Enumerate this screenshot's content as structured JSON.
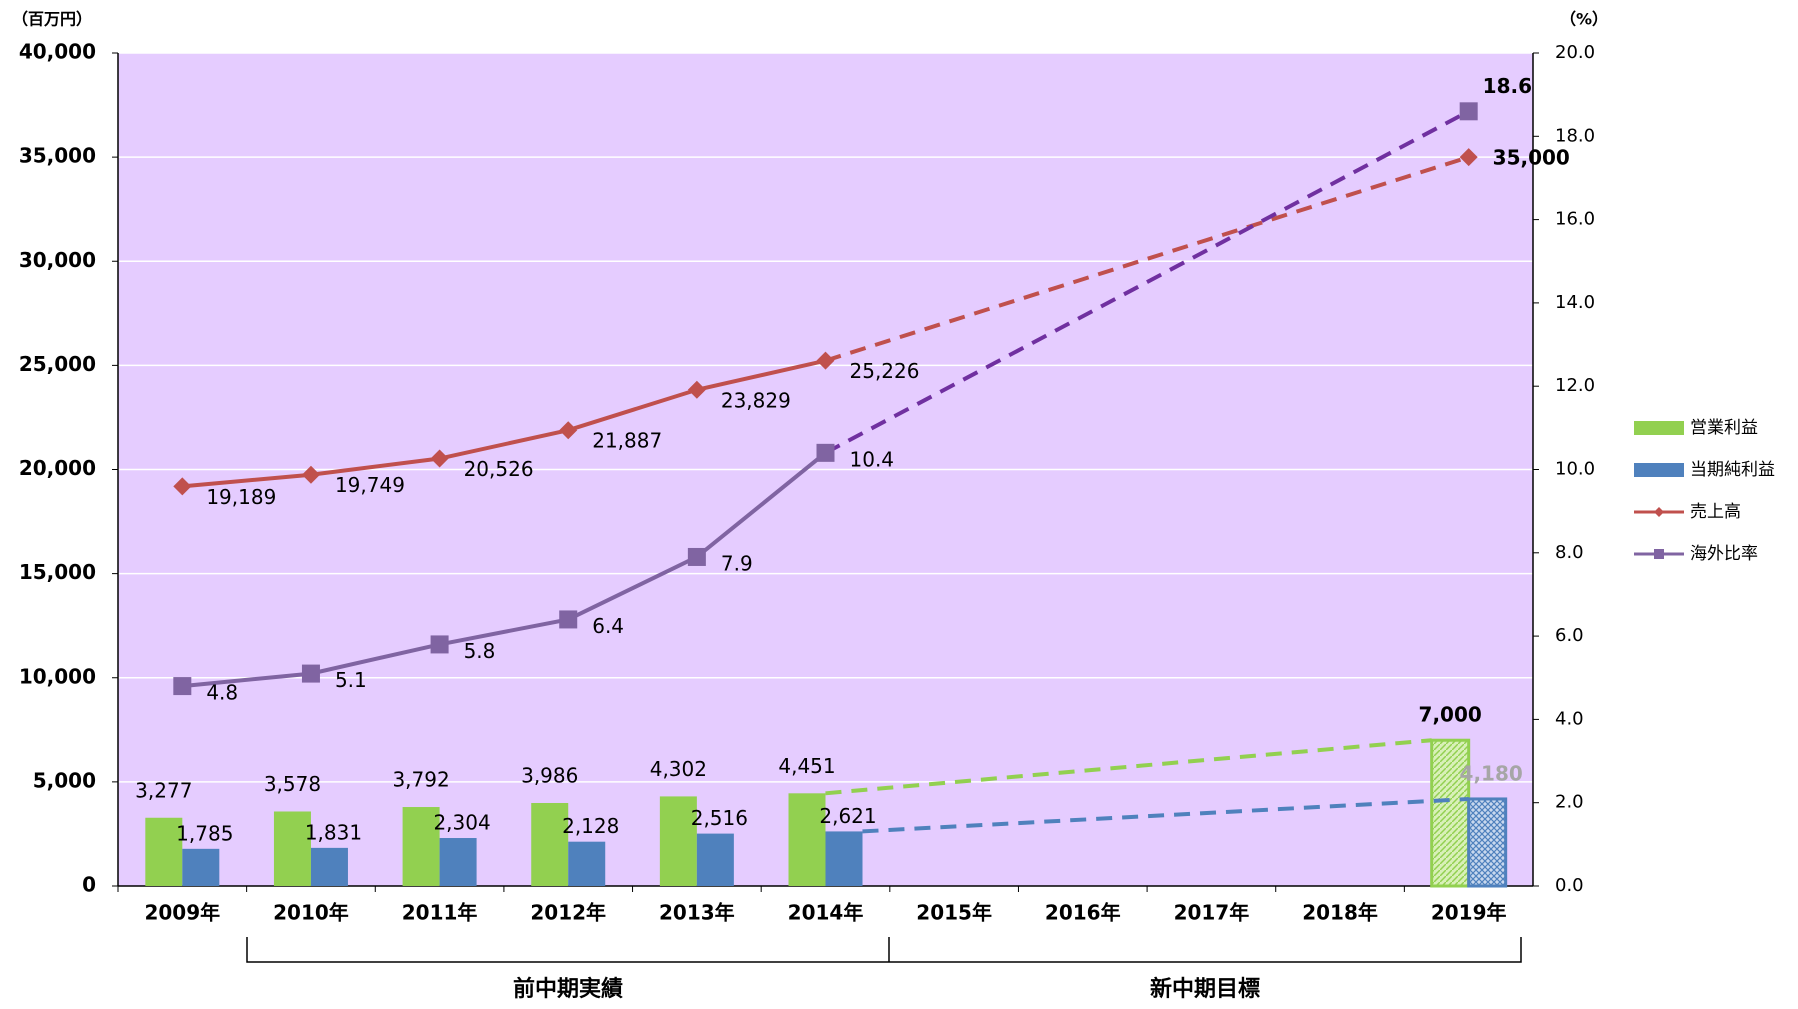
{
  "chart_data": {
    "type": "bar-line",
    "y_label": "（百万円）",
    "y2_label": "（%）",
    "categories": [
      "2009年",
      "2010年",
      "2011年",
      "2012年",
      "2013年",
      "2014年",
      "2015年",
      "2016年",
      "2017年",
      "2018年",
      "2019年"
    ],
    "group_labels": [
      "前中期実績",
      "新中期目標"
    ],
    "ylim": [
      0,
      40000
    ],
    "yticks": [
      0,
      {
        "value": 5000,
        "label": "5,000"
      },
      {
        "value": 10000,
        "label": "10,000"
      },
      {
        "value": 15000,
        "label": "15,000"
      },
      {
        "value": 20000,
        "label": "20,000"
      },
      {
        "value": 25000,
        "label": "25,000"
      },
      {
        "value": 30000,
        "label": "30,000"
      },
      {
        "value": 35000,
        "label": "35,000"
      },
      {
        "value": 40000,
        "label": "40,000"
      }
    ],
    "y2lim": [
      0,
      20
    ],
    "y2ticks": [
      {
        "value": 0,
        "label": "0.0"
      },
      {
        "value": 2,
        "label": "2.0"
      },
      {
        "value": 4,
        "label": "4.0"
      },
      {
        "value": 6,
        "label": "6.0"
      },
      {
        "value": 8,
        "label": "8.0"
      },
      {
        "value": 10,
        "label": "10.0"
      },
      {
        "value": 12,
        "label": "12.0"
      },
      {
        "value": 14,
        "label": "14.0"
      },
      {
        "value": 16,
        "label": "16.0"
      },
      {
        "value": 18,
        "label": "18.0"
      },
      {
        "value": 20,
        "label": "20.0"
      }
    ],
    "grid": true,
    "legend": "right",
    "series": [
      {
        "name": "営業利益",
        "type": "bar",
        "color": "#92d050",
        "values": [
          3277,
          3578,
          3792,
          3986,
          4302,
          4451,
          null,
          null,
          null,
          null,
          7000
        ],
        "value_labels": [
          "3,277",
          "3,578",
          "3,792",
          "3,986",
          "4,302",
          "4,451",
          null,
          null,
          null,
          null,
          "7,000"
        ]
      },
      {
        "name": "当期純利益",
        "type": "bar",
        "color": "#4f81bd",
        "values": [
          1785,
          1831,
          2304,
          2128,
          2516,
          2621,
          null,
          null,
          null,
          null,
          4180
        ],
        "value_labels": [
          "1,785",
          "1,831",
          "2,304",
          "2,128",
          "2,516",
          "2,621",
          null,
          null,
          null,
          null,
          "4,180"
        ]
      },
      {
        "name": "売上高",
        "type": "line",
        "color": "#c0504d",
        "marker": "diamond",
        "values": [
          19189,
          19749,
          20526,
          21887,
          23829,
          25226,
          null,
          null,
          null,
          null,
          35000
        ],
        "value_labels": [
          "19,189",
          "19,749",
          "20,526",
          "21,887",
          "23,829",
          "25,226",
          null,
          null,
          null,
          null,
          "35,000"
        ]
      },
      {
        "name": "海外比率",
        "type": "line",
        "color": "#8064a2",
        "marker": "square",
        "axis": "y2",
        "values": [
          4.8,
          5.1,
          5.8,
          6.4,
          7.9,
          10.4,
          null,
          null,
          null,
          null,
          18.6
        ]
      }
    ]
  }
}
